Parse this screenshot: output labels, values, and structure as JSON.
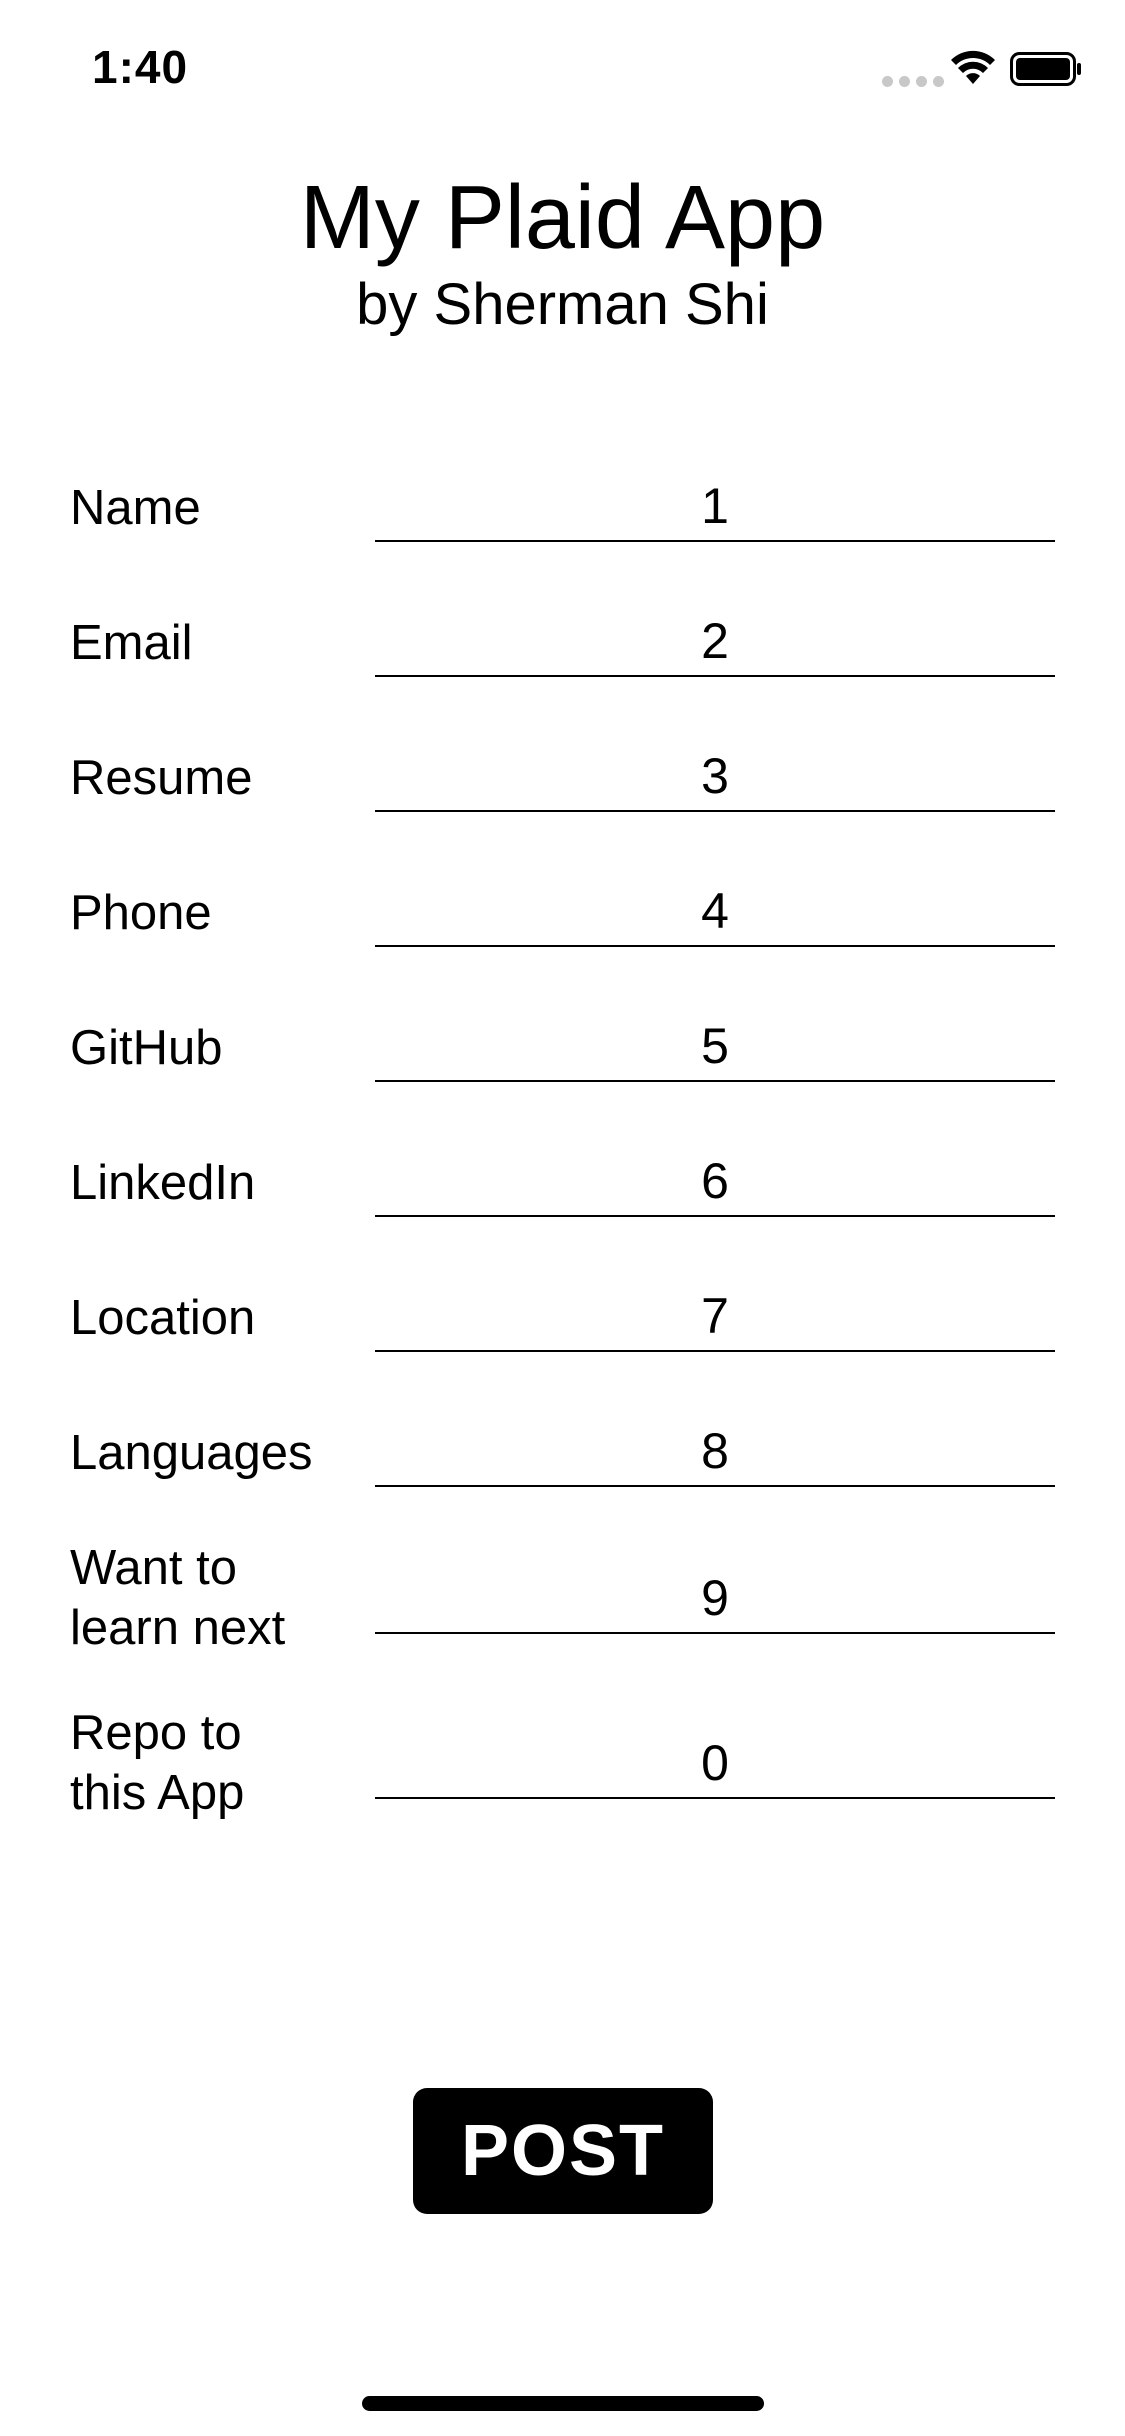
{
  "status_bar": {
    "time": "1:40",
    "icons": [
      "signal-icon",
      "wifi-icon",
      "battery-icon"
    ]
  },
  "header": {
    "title": "My Plaid App",
    "subtitle": "by Sherman Shi"
  },
  "form": {
    "fields": [
      {
        "label": "Name",
        "value": "1"
      },
      {
        "label": "Email",
        "value": "2"
      },
      {
        "label": "Resume",
        "value": "3"
      },
      {
        "label": "Phone",
        "value": "4"
      },
      {
        "label": "GitHub",
        "value": "5"
      },
      {
        "label": "LinkedIn",
        "value": "6"
      },
      {
        "label": "Location",
        "value": "7"
      },
      {
        "label": "Languages",
        "value": "8"
      },
      {
        "label_line1": "Want to",
        "label_line2": "learn next",
        "value": "9"
      },
      {
        "label_line1": "Repo to",
        "label_line2": "this App",
        "value": "0"
      }
    ]
  },
  "actions": {
    "post_label": "POST"
  },
  "colors": {
    "background": "#ffffff",
    "text": "#000000",
    "button_bg": "#000000",
    "button_text": "#ffffff"
  }
}
